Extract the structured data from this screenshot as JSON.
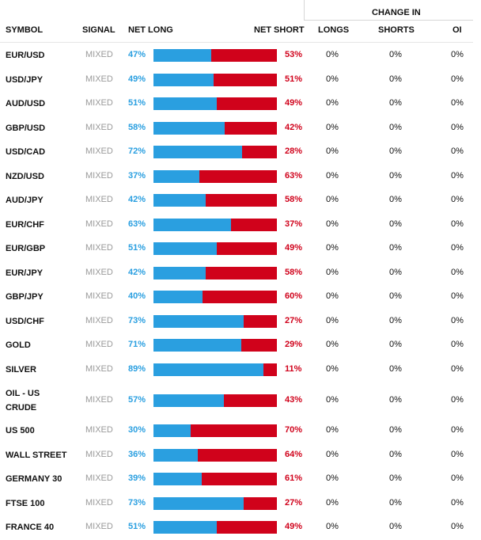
{
  "header": {
    "change_in": "CHANGE IN",
    "symbol": "SYMBOL",
    "signal": "SIGNAL",
    "net_long": "NET LONG",
    "net_short": "NET SHORT",
    "longs": "LONGS",
    "shorts": "SHORTS",
    "oi": "OI"
  },
  "colors": {
    "long": "#2a9fe0",
    "short": "#d0021b",
    "signal": "#9a9a9a"
  },
  "rows": [
    {
      "symbol": "EUR/USD",
      "signal": "MIXED",
      "long": 47,
      "long_label": "47%",
      "short_label": "53%",
      "longs": "0%",
      "shorts": "0%",
      "oi": "0%"
    },
    {
      "symbol": "USD/JPY",
      "signal": "MIXED",
      "long": 49,
      "long_label": "49%",
      "short_label": "51%",
      "longs": "0%",
      "shorts": "0%",
      "oi": "0%"
    },
    {
      "symbol": "AUD/USD",
      "signal": "MIXED",
      "long": 51,
      "long_label": "51%",
      "short_label": "49%",
      "longs": "0%",
      "shorts": "0%",
      "oi": "0%"
    },
    {
      "symbol": "GBP/USD",
      "signal": "MIXED",
      "long": 58,
      "long_label": "58%",
      "short_label": "42%",
      "longs": "0%",
      "shorts": "0%",
      "oi": "0%"
    },
    {
      "symbol": "USD/CAD",
      "signal": "MIXED",
      "long": 72,
      "long_label": "72%",
      "short_label": "28%",
      "longs": "0%",
      "shorts": "0%",
      "oi": "0%"
    },
    {
      "symbol": "NZD/USD",
      "signal": "MIXED",
      "long": 37,
      "long_label": "37%",
      "short_label": "63%",
      "longs": "0%",
      "shorts": "0%",
      "oi": "0%"
    },
    {
      "symbol": "AUD/JPY",
      "signal": "MIXED",
      "long": 42,
      "long_label": "42%",
      "short_label": "58%",
      "longs": "0%",
      "shorts": "0%",
      "oi": "0%"
    },
    {
      "symbol": "EUR/CHF",
      "signal": "MIXED",
      "long": 63,
      "long_label": "63%",
      "short_label": "37%",
      "longs": "0%",
      "shorts": "0%",
      "oi": "0%"
    },
    {
      "symbol": "EUR/GBP",
      "signal": "MIXED",
      "long": 51,
      "long_label": "51%",
      "short_label": "49%",
      "longs": "0%",
      "shorts": "0%",
      "oi": "0%"
    },
    {
      "symbol": "EUR/JPY",
      "signal": "MIXED",
      "long": 42,
      "long_label": "42%",
      "short_label": "58%",
      "longs": "0%",
      "shorts": "0%",
      "oi": "0%"
    },
    {
      "symbol": "GBP/JPY",
      "signal": "MIXED",
      "long": 40,
      "long_label": "40%",
      "short_label": "60%",
      "longs": "0%",
      "shorts": "0%",
      "oi": "0%"
    },
    {
      "symbol": "USD/CHF",
      "signal": "MIXED",
      "long": 73,
      "long_label": "73%",
      "short_label": "27%",
      "longs": "0%",
      "shorts": "0%",
      "oi": "0%"
    },
    {
      "symbol": "GOLD",
      "signal": "MIXED",
      "long": 71,
      "long_label": "71%",
      "short_label": "29%",
      "longs": "0%",
      "shorts": "0%",
      "oi": "0%"
    },
    {
      "symbol": "SILVER",
      "signal": "MIXED",
      "long": 89,
      "long_label": "89%",
      "short_label": "11%",
      "longs": "0%",
      "shorts": "0%",
      "oi": "0%"
    },
    {
      "symbol": "OIL - US CRUDE",
      "signal": "MIXED",
      "long": 57,
      "long_label": "57%",
      "short_label": "43%",
      "longs": "0%",
      "shorts": "0%",
      "oi": "0%",
      "tall": true
    },
    {
      "symbol": "US 500",
      "signal": "MIXED",
      "long": 30,
      "long_label": "30%",
      "short_label": "70%",
      "longs": "0%",
      "shorts": "0%",
      "oi": "0%"
    },
    {
      "symbol": "WALL STREET",
      "signal": "MIXED",
      "long": 36,
      "long_label": "36%",
      "short_label": "64%",
      "longs": "0%",
      "shorts": "0%",
      "oi": "0%"
    },
    {
      "symbol": "GERMANY 30",
      "signal": "MIXED",
      "long": 39,
      "long_label": "39%",
      "short_label": "61%",
      "longs": "0%",
      "shorts": "0%",
      "oi": "0%"
    },
    {
      "symbol": "FTSE 100",
      "signal": "MIXED",
      "long": 73,
      "long_label": "73%",
      "short_label": "27%",
      "longs": "0%",
      "shorts": "0%",
      "oi": "0%"
    },
    {
      "symbol": "FRANCE 40",
      "signal": "MIXED",
      "long": 51,
      "long_label": "51%",
      "short_label": "49%",
      "longs": "0%",
      "shorts": "0%",
      "oi": "0%"
    }
  ]
}
